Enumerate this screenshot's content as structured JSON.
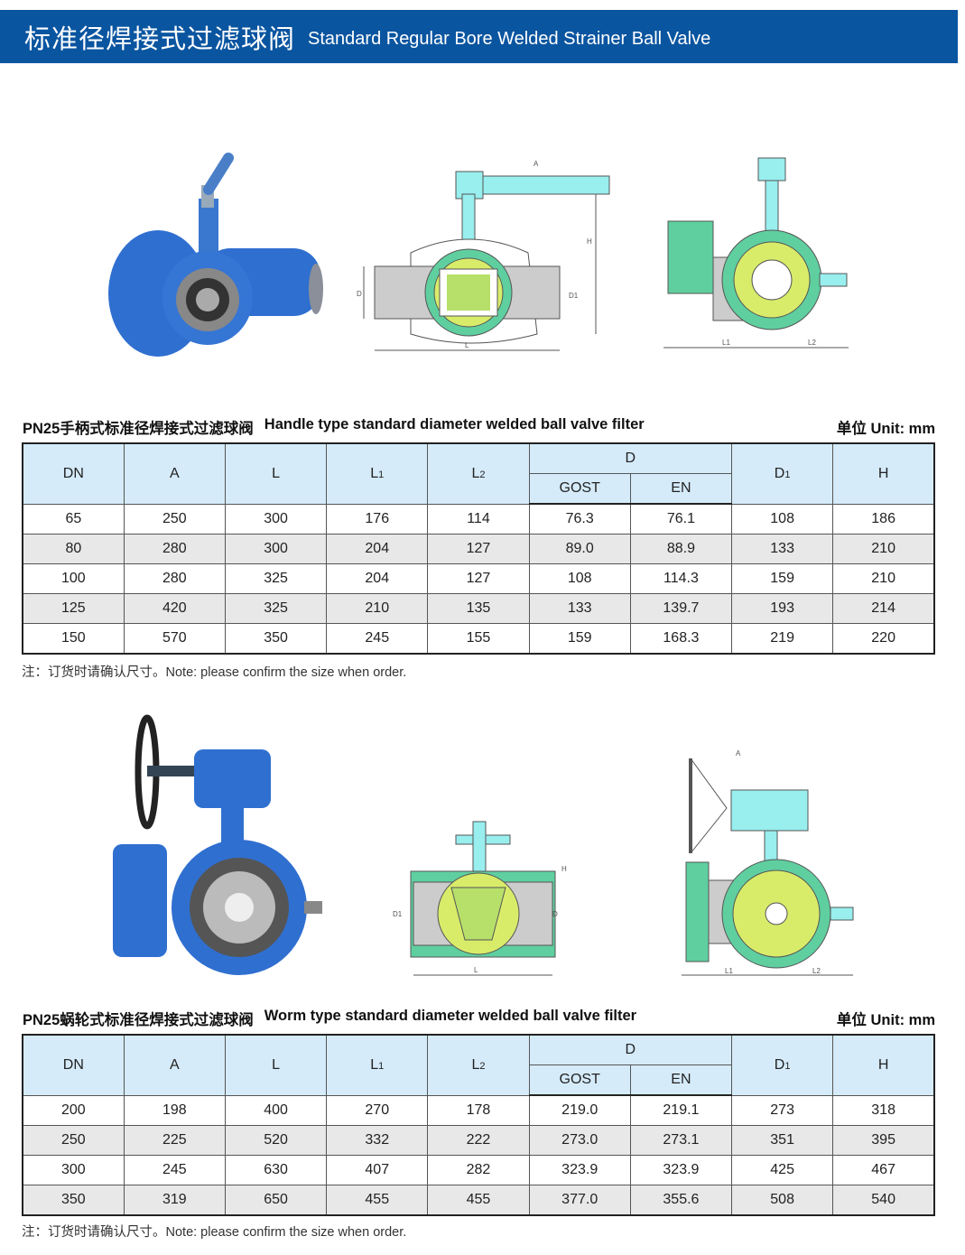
{
  "banner": {
    "title_cn": "标准径焊接式过滤球阀",
    "title_en": "Standard Regular Bore Welded Strainer Ball Valve"
  },
  "colors": {
    "banner": "#0a55a0",
    "header_fill": "#d5ebfa",
    "valve_blue": "#2f6fd0",
    "drawing_green": "#5fcfa0",
    "drawing_yellow": "#d8ec6a"
  },
  "drawing_labels": {
    "A": "A",
    "H": "H",
    "D": "D",
    "D1": "D1",
    "L": "L",
    "L1": "L1",
    "L2": "L2"
  },
  "columns": {
    "dn": "DN",
    "a": "A",
    "l": "L",
    "l1": "L",
    "l1_sub": "1",
    "l2": "L",
    "l2_sub": "2",
    "d": "D",
    "gost": "GOST",
    "en": "EN",
    "d1": "D",
    "d1_sub": "1",
    "h": "H"
  },
  "section1": {
    "title_cn": "PN25手柄式标准径焊接式过滤球阀",
    "title_en": "Handle type standard diameter welded ball valve filter",
    "unit": "单位 Unit: mm",
    "rows": [
      [
        "65",
        "250",
        "300",
        "176",
        "114",
        "76.3",
        "76.1",
        "108",
        "186"
      ],
      [
        "80",
        "280",
        "300",
        "204",
        "127",
        "89.0",
        "88.9",
        "133",
        "210"
      ],
      [
        "100",
        "280",
        "325",
        "204",
        "127",
        "108",
        "114.3",
        "159",
        "210"
      ],
      [
        "125",
        "420",
        "325",
        "210",
        "135",
        "133",
        "139.7",
        "193",
        "214"
      ],
      [
        "150",
        "570",
        "350",
        "245",
        "155",
        "159",
        "168.3",
        "219",
        "220"
      ]
    ],
    "note": "注：订货时请确认尺寸。Note: please confirm the size when order."
  },
  "section2": {
    "title_cn": "PN25蜗轮式标准径焊接式过滤球阀",
    "title_en": "Worm type standard diameter welded ball valve filter",
    "unit": "单位 Unit: mm",
    "rows": [
      [
        "200",
        "198",
        "400",
        "270",
        "178",
        "219.0",
        "219.1",
        "273",
        "318"
      ],
      [
        "250",
        "225",
        "520",
        "332",
        "222",
        "273.0",
        "273.1",
        "351",
        "395"
      ],
      [
        "300",
        "245",
        "630",
        "407",
        "282",
        "323.9",
        "323.9",
        "425",
        "467"
      ],
      [
        "350",
        "319",
        "650",
        "455",
        "455",
        "377.0",
        "355.6",
        "508",
        "540"
      ]
    ],
    "note": "注：订货时请确认尺寸。Note: please confirm the size when order."
  }
}
